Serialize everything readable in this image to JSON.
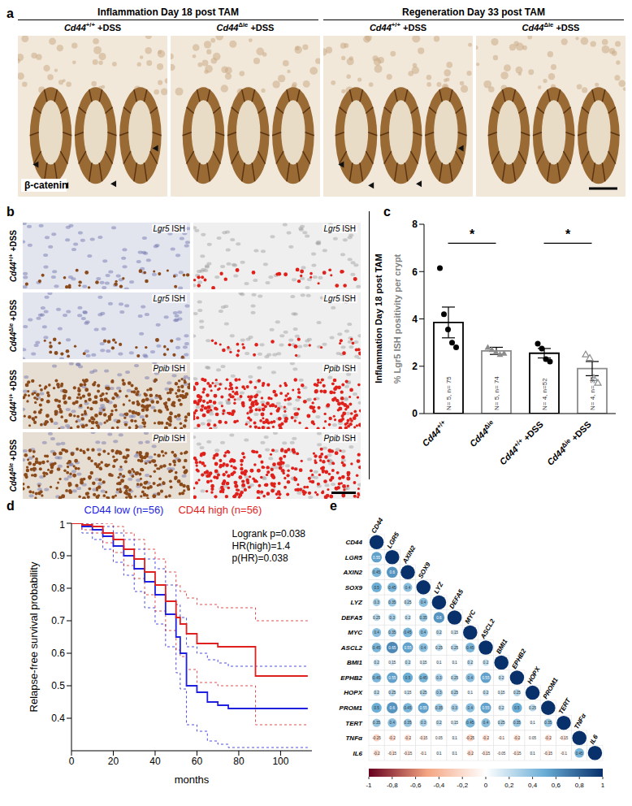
{
  "figure_panels": {
    "a": {
      "label": "a",
      "headers": [
        "Inflammation Day 18 post TAM",
        "Regeneration Day 33 post TAM"
      ],
      "columns": [
        "Cd44+/+ +DSS",
        "Cd44Δie +DSS",
        "Cd44+/+ +DSS",
        "Cd44Δie +DSS"
      ],
      "stain": "β-catenin"
    },
    "b": {
      "label": "b",
      "rows": [
        {
          "genotype": "Cd44+/+ +DSS",
          "probe": "Lgr5 ISH"
        },
        {
          "genotype": "Cd44Δie +DSS",
          "probe": "Lgr5 ISH"
        },
        {
          "genotype": "Cd44+/+ +DSS",
          "probe": "Ppib ISH"
        },
        {
          "genotype": "Cd44Δie +DSS",
          "probe": "Ppib ISH"
        }
      ]
    }
  },
  "chart_data": [
    {
      "panel": "c",
      "type": "bar",
      "y_label": "% Lgr5 ISH positivity per crypt",
      "side_label": "Inflammation Day 18 post TAM",
      "categories": [
        "Cd44+/+",
        "Cd44Δie",
        "Cd44+/+ +DSS",
        "Cd44Δie +DSS"
      ],
      "values": [
        3.85,
        2.65,
        2.55,
        1.9
      ],
      "errors": [
        0.65,
        0.15,
        0.2,
        0.3
      ],
      "annotations": [
        "N= 5, n= 75",
        "N= 5, n= 74",
        "N= 4, n=52",
        "N= 4, n= 36"
      ],
      "groups": [
        {
          "points": [
            6.15,
            4.2,
            3.55,
            3.0,
            2.8
          ],
          "color": "#000000",
          "marker": "circle"
        },
        {
          "points": [
            2.8,
            2.7,
            2.6,
            2.5,
            2.55
          ],
          "color": "#8c8c8c",
          "marker": "triangle"
        },
        {
          "points": [
            2.95,
            2.75,
            2.3,
            2.2
          ],
          "color": "#000000",
          "marker": "circle"
        },
        {
          "points": [
            2.5,
            2.35,
            1.5,
            1.3
          ],
          "color": "#8c8c8c",
          "marker": "open-triangle"
        }
      ],
      "significance": [
        {
          "from": 0,
          "to": 1,
          "label": "*"
        },
        {
          "from": 2,
          "to": 3,
          "label": "*"
        }
      ],
      "ylim": [
        0,
        8
      ],
      "yticks": [
        0,
        2,
        4,
        6,
        8
      ]
    },
    {
      "panel": "d",
      "type": "line",
      "x_label": "months",
      "y_label": "Relapse-free survival probability",
      "legend": "top",
      "annotations": [
        "Logrank p=0.038",
        "HR(high)=1.4",
        "p(HR)=0.038"
      ],
      "x": [
        0,
        5,
        10,
        15,
        20,
        25,
        30,
        35,
        40,
        45,
        50,
        52,
        55,
        60,
        65,
        70,
        75,
        85,
        88,
        100,
        113
      ],
      "series": [
        {
          "name": "CD44 low (n=56)",
          "color": "#1f1fe0",
          "line_style": "step",
          "values": [
            1,
            0.99,
            0.98,
            0.96,
            0.93,
            0.9,
            0.86,
            0.82,
            0.78,
            0.72,
            0.65,
            0.6,
            0.5,
            0.48,
            0.45,
            0.44,
            0.43,
            0.43,
            0.43,
            0.43,
            0.43
          ],
          "ci_lower": [
            1,
            0.97,
            0.95,
            0.92,
            0.88,
            0.84,
            0.79,
            0.74,
            0.69,
            0.62,
            0.54,
            0.49,
            0.38,
            0.36,
            0.33,
            0.32,
            0.31,
            0.31,
            0.31,
            0.31,
            0.31
          ],
          "ci_upper": [
            1,
            1,
            1,
            0.99,
            0.97,
            0.95,
            0.92,
            0.89,
            0.86,
            0.81,
            0.75,
            0.71,
            0.62,
            0.6,
            0.58,
            0.57,
            0.56,
            0.56,
            0.56,
            0.56,
            0.56
          ]
        },
        {
          "name": "CD44 high (n=56)",
          "color": "#e01f1f",
          "line_style": "step",
          "values": [
            1,
            0.995,
            0.99,
            0.97,
            0.95,
            0.92,
            0.89,
            0.85,
            0.81,
            0.76,
            0.71,
            0.69,
            0.66,
            0.63,
            0.63,
            0.62,
            0.62,
            0.62,
            0.53,
            0.53,
            0.53
          ],
          "ci_lower": [
            1,
            0.98,
            0.97,
            0.94,
            0.91,
            0.87,
            0.83,
            0.78,
            0.73,
            0.67,
            0.61,
            0.59,
            0.55,
            0.51,
            0.51,
            0.5,
            0.5,
            0.5,
            0.38,
            0.38,
            0.38
          ],
          "ci_upper": [
            1,
            1,
            1,
            1,
            0.99,
            0.97,
            0.95,
            0.92,
            0.89,
            0.85,
            0.81,
            0.79,
            0.77,
            0.75,
            0.75,
            0.74,
            0.74,
            0.74,
            0.7,
            0.7,
            0.7
          ]
        }
      ],
      "xlim": [
        0,
        115
      ],
      "xticks": [
        0,
        20,
        40,
        60,
        80,
        100
      ],
      "ylim": [
        0.3,
        1
      ],
      "yticks": [
        0.4,
        0.5,
        0.6,
        0.7,
        0.8,
        0.9,
        1
      ]
    },
    {
      "panel": "e",
      "type": "heatmap",
      "data_labels": true,
      "labels": [
        "CD44",
        "LGR5",
        "AXIN2",
        "SOX9",
        "LYZ",
        "DEFA5",
        "MYC",
        "ASCL2",
        "BMI1",
        "EPHB2",
        "HOPX",
        "PROM1",
        "TERT",
        "TNFα",
        "IL6"
      ],
      "cells": [
        [
          1
        ],
        [
          0.55,
          1
        ],
        [
          0.45,
          0.6,
          1
        ],
        [
          0.5,
          0.45,
          0.4,
          1
        ],
        [
          0.3,
          0.35,
          0.25,
          0.4,
          1
        ],
        [
          0.25,
          0.3,
          0.2,
          0.35,
          0.6,
          1
        ],
        [
          0.4,
          0.35,
          0.45,
          0.4,
          0.2,
          0.15,
          1
        ],
        [
          0.45,
          0.65,
          0.55,
          0.4,
          0.25,
          0.25,
          0.45,
          1
        ],
        [
          0.2,
          0.15,
          0.2,
          0.15,
          0.1,
          0.1,
          0.2,
          0.2,
          1
        ],
        [
          0.45,
          0.55,
          0.5,
          0.45,
          0.3,
          0.25,
          0.4,
          0.55,
          0.2,
          1
        ],
        [
          0.2,
          0.25,
          0.15,
          0.25,
          0.3,
          0.25,
          0.1,
          0.2,
          0.15,
          0.25,
          1
        ],
        [
          0.5,
          0.6,
          0.45,
          0.55,
          0.35,
          0.3,
          0.4,
          0.55,
          0.2,
          0.5,
          0.25,
          1
        ],
        [
          0.35,
          0.4,
          0.35,
          0.3,
          0.2,
          0.15,
          0.45,
          0.4,
          0.25,
          0.35,
          0.1,
          0.35,
          1
        ],
        [
          -0.25,
          -0.2,
          -0.2,
          -0.15,
          0.05,
          0.1,
          -0.25,
          -0.2,
          -0.1,
          -0.2,
          0.05,
          -0.2,
          -0.15,
          1
        ],
        [
          -0.2,
          -0.15,
          -0.15,
          -0.1,
          0.1,
          0.1,
          -0.2,
          -0.15,
          -0.05,
          -0.15,
          0.1,
          -0.15,
          -0.1,
          0.45,
          1
        ]
      ],
      "colorbar": {
        "range": [
          -1,
          1
        ],
        "ticks": [
          -1,
          {
            "value": -0.8,
            "label": "-0,8"
          },
          {
            "value": -0.6,
            "label": "-0,6"
          },
          {
            "value": -0.4,
            "label": "-0,4"
          },
          {
            "value": -0.2,
            "label": "-0,2"
          },
          0,
          {
            "value": 0.2,
            "label": "0,2"
          },
          {
            "value": 0.4,
            "label": "0,4"
          },
          {
            "value": 0.6,
            "label": "0,6"
          },
          {
            "value": 0.8,
            "label": "0,8"
          },
          1
        ]
      }
    }
  ]
}
